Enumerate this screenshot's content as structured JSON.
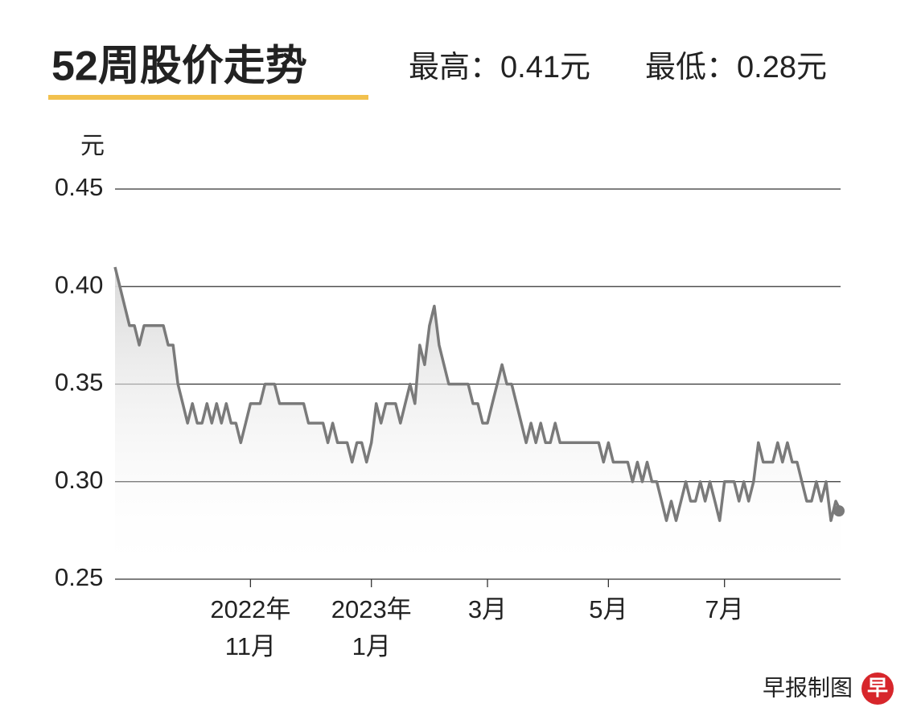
{
  "chart_data": {
    "type": "line",
    "title": "52周股价走势",
    "subtitle_high": "最高：0.41元",
    "subtitle_low": "最低：0.28元",
    "y_label": "元",
    "source": "早报制图",
    "logo": "早",
    "color": "#7a7a7a",
    "area": true,
    "grid": true,
    "ylim": [
      0.25,
      0.45
    ],
    "yticks": [
      {
        "value": 0.25,
        "label": "0.25"
      },
      {
        "value": 0.3,
        "label": "0.30"
      },
      {
        "value": 0.35,
        "label": "0.35"
      },
      {
        "value": 0.4,
        "label": "0.40"
      },
      {
        "value": 0.45,
        "label": "0.45"
      }
    ],
    "categories": [
      null,
      null,
      null,
      null,
      null,
      null,
      null,
      null,
      null,
      null,
      null,
      null,
      null,
      null,
      null,
      null,
      null,
      null,
      null,
      null,
      null,
      null,
      null,
      null,
      null,
      null,
      null,
      null,
      [
        "2022年",
        "11月"
      ],
      null,
      null,
      null,
      null,
      null,
      null,
      null,
      null,
      null,
      null,
      null,
      null,
      null,
      null,
      null,
      null,
      null,
      null,
      null,
      null,
      null,
      null,
      null,
      null,
      [
        "2023年",
        "1月"
      ],
      null,
      null,
      null,
      null,
      null,
      null,
      null,
      null,
      null,
      null,
      null,
      null,
      null,
      null,
      null,
      null,
      null,
      null,
      null,
      null,
      null,
      null,
      null,
      [
        "3月"
      ],
      null,
      null,
      null,
      null,
      null,
      null,
      null,
      null,
      null,
      null,
      null,
      null,
      null,
      null,
      null,
      null,
      null,
      null,
      null,
      null,
      null,
      null,
      null,
      null,
      [
        "5月"
      ],
      null,
      null,
      null,
      null,
      null,
      null,
      null,
      null,
      null,
      null,
      null,
      null,
      null,
      null,
      null,
      null,
      null,
      null,
      null,
      null,
      null,
      null,
      null,
      [
        "7月"
      ],
      null,
      null,
      null,
      null,
      null,
      null,
      null,
      null,
      null,
      null,
      null,
      null,
      null,
      null,
      null,
      null,
      null,
      null,
      null,
      null,
      null,
      null,
      null,
      null
    ],
    "values": [
      0.41,
      0.4,
      0.39,
      0.38,
      0.38,
      0.37,
      0.38,
      0.38,
      0.38,
      0.38,
      0.38,
      0.37,
      0.37,
      0.35,
      0.34,
      0.33,
      0.34,
      0.33,
      0.33,
      0.34,
      0.33,
      0.34,
      0.33,
      0.34,
      0.33,
      0.33,
      0.32,
      0.33,
      0.34,
      0.34,
      0.34,
      0.35,
      0.35,
      0.35,
      0.34,
      0.34,
      0.34,
      0.34,
      0.34,
      0.34,
      0.33,
      0.33,
      0.33,
      0.33,
      0.32,
      0.33,
      0.32,
      0.32,
      0.32,
      0.31,
      0.32,
      0.32,
      0.31,
      0.32,
      0.34,
      0.33,
      0.34,
      0.34,
      0.34,
      0.33,
      0.34,
      0.35,
      0.34,
      0.37,
      0.36,
      0.38,
      0.39,
      0.37,
      0.36,
      0.35,
      0.35,
      0.35,
      0.35,
      0.35,
      0.34,
      0.34,
      0.33,
      0.33,
      0.34,
      0.35,
      0.36,
      0.35,
      0.35,
      0.34,
      0.33,
      0.32,
      0.33,
      0.32,
      0.33,
      0.32,
      0.32,
      0.33,
      0.32,
      0.32,
      0.32,
      0.32,
      0.32,
      0.32,
      0.32,
      0.32,
      0.32,
      0.31,
      0.32,
      0.31,
      0.31,
      0.31,
      0.31,
      0.3,
      0.31,
      0.3,
      0.31,
      0.3,
      0.3,
      0.29,
      0.28,
      0.29,
      0.28,
      0.29,
      0.3,
      0.29,
      0.29,
      0.3,
      0.29,
      0.3,
      0.29,
      0.28,
      0.3,
      0.3,
      0.3,
      0.29,
      0.3,
      0.29,
      0.3,
      0.32,
      0.31,
      0.31,
      0.31,
      0.32,
      0.31,
      0.32,
      0.31,
      0.31,
      0.3,
      0.29,
      0.29,
      0.3,
      0.29,
      0.3,
      0.28,
      0.29,
      0.285
    ]
  }
}
